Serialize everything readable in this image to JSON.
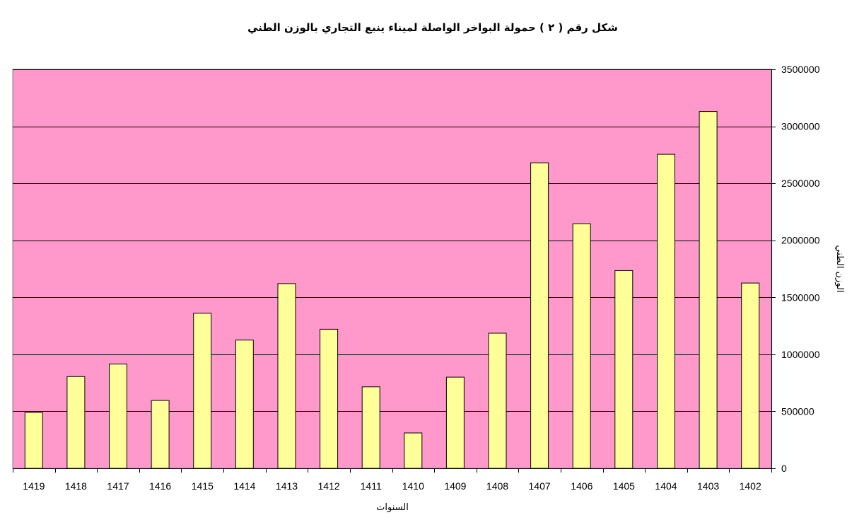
{
  "chart_data": {
    "type": "bar",
    "title": "شكل رقم ( ٢ )   حمولة البواخر الواصلة لميناء ينبع التجاري بالوزن الطني",
    "xlabel": "السنوات",
    "ylabel": "الوزن الطني",
    "categories": [
      "1419",
      "1418",
      "1417",
      "1416",
      "1415",
      "1414",
      "1413",
      "1412",
      "1411",
      "1410",
      "1409",
      "1408",
      "1407",
      "1406",
      "1405",
      "1404",
      "1403",
      "1402"
    ],
    "values": [
      490000,
      805000,
      915000,
      595000,
      1360000,
      1125000,
      1620000,
      1220000,
      715000,
      310000,
      800000,
      1185000,
      2680000,
      2145000,
      1735000,
      2755000,
      3130000,
      1625000
    ],
    "ylim": [
      0,
      3500000
    ],
    "yticks": [
      "0",
      "500000",
      "1000000",
      "1500000",
      "2000000",
      "2500000",
      "3000000",
      "3500000"
    ],
    "ytick_values": [
      0,
      500000,
      1000000,
      1500000,
      2000000,
      2500000,
      3000000,
      3500000
    ],
    "y_axis_side": "right",
    "grid": true,
    "legend": "none",
    "colors": {
      "plot_background": "#ff99cc",
      "bar_fill": "#ffff99",
      "bar_stroke": "#000000",
      "gridline": "#000000"
    }
  }
}
